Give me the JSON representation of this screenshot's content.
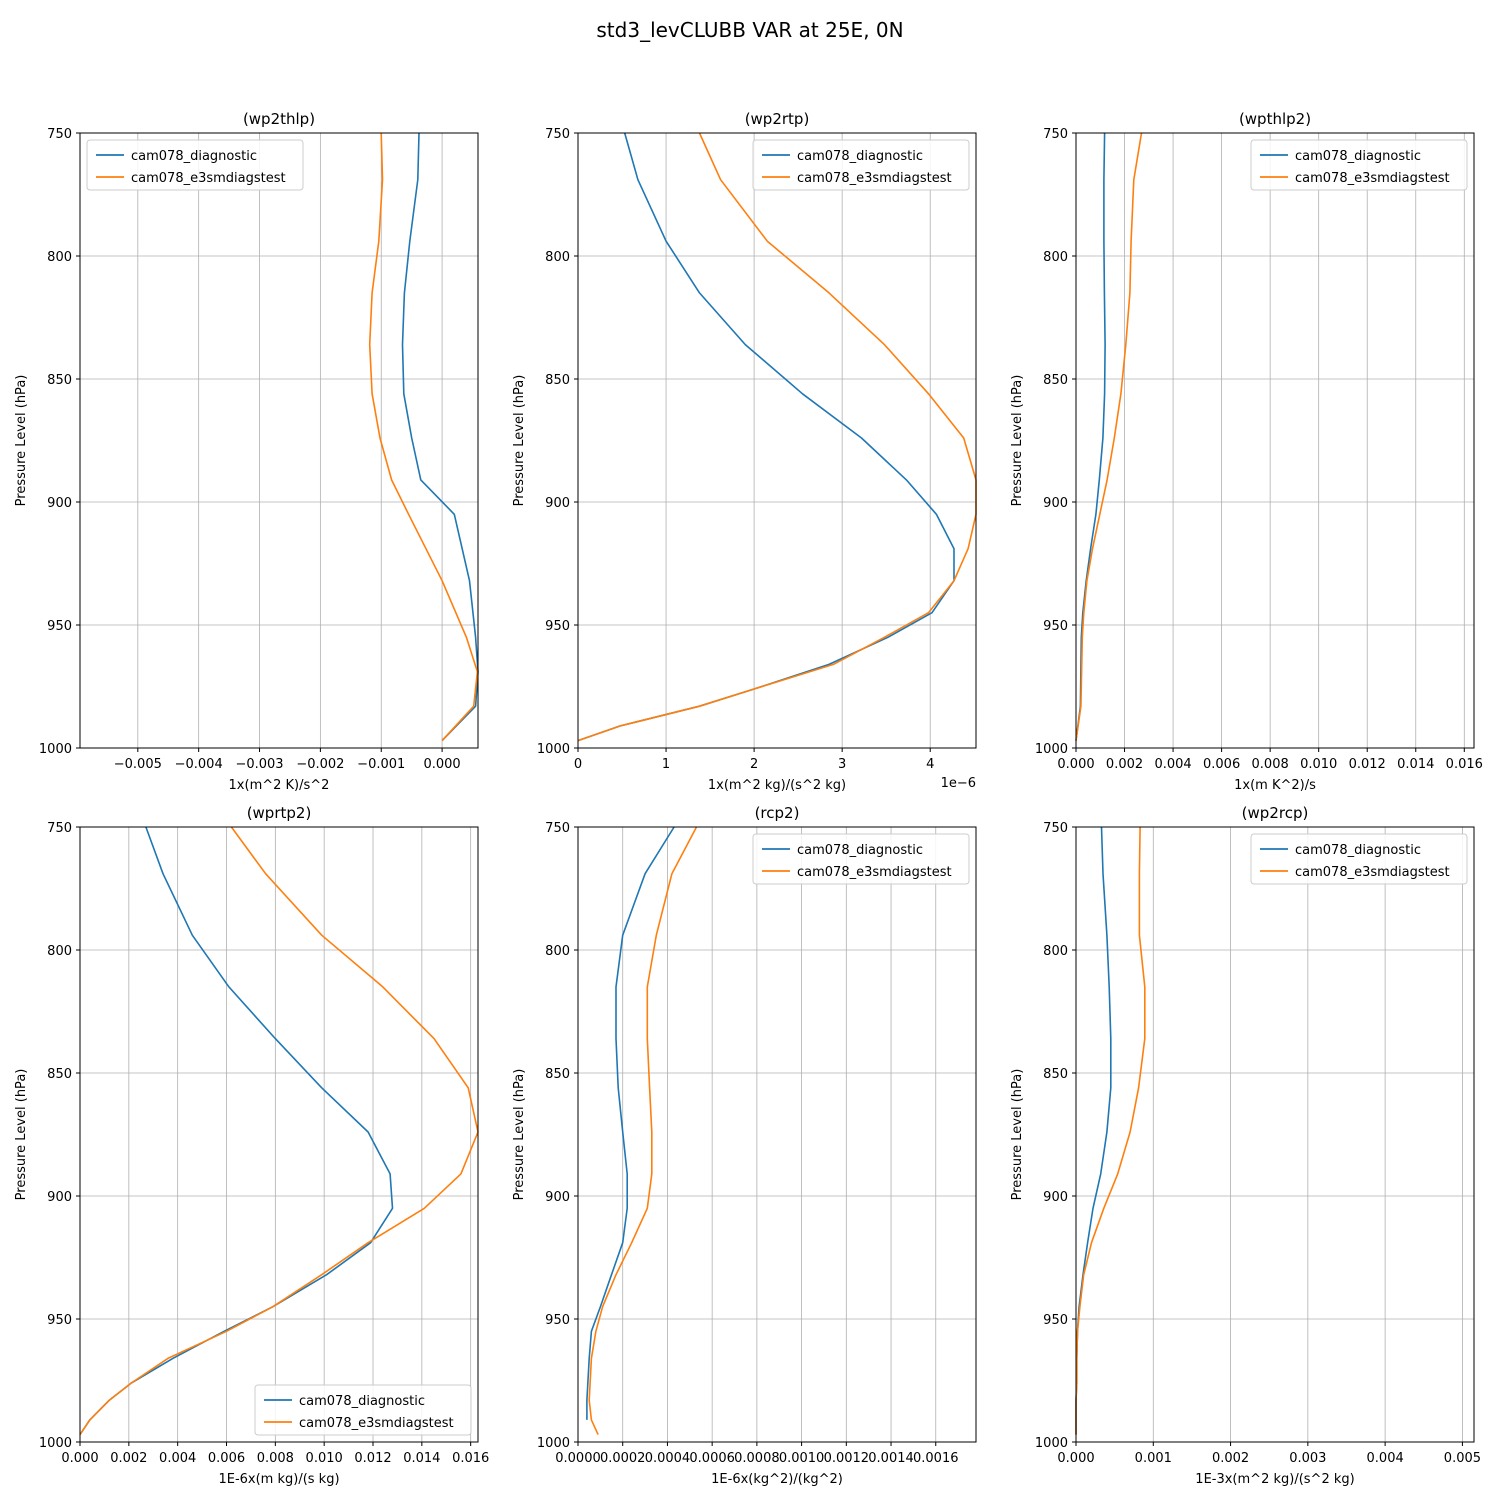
{
  "figure_title": "std3_levCLUBB VAR at 25E, 0N",
  "colors": {
    "diag": "#1f77b4",
    "e3sm": "#ff7f0e",
    "grid": "#b0b0b0"
  },
  "chart_data": [
    {
      "type": "line",
      "title": "(wp2thlp)",
      "xlabel": "1x(m^2 K)/s^2",
      "ylabel": "Pressure Level (hPa)",
      "xlim": [
        -0.00595,
        0.00059
      ],
      "ylim": [
        1000,
        750
      ],
      "y_inverted": true,
      "grid": true,
      "xticks": [
        -0.005,
        -0.004,
        -0.003,
        -0.002,
        -0.001,
        0.0
      ],
      "xtick_labels": [
        "−0.005",
        "−0.004",
        "−0.003",
        "−0.002",
        "−0.001",
        "0.000"
      ],
      "yticks": [
        750,
        800,
        850,
        900,
        950,
        1000
      ],
      "ytick_labels": [
        "750",
        "800",
        "850",
        "900",
        "950",
        "1000"
      ],
      "x_offset_text": "",
      "legend_loc": "upper-left",
      "series": [
        {
          "name": "cam078_diagnostic",
          "color": "#1f77b4",
          "x": [
            -0.00038,
            -0.0004,
            -0.00053,
            -0.00062,
            -0.00065,
            -0.00063,
            -0.0005,
            -0.00035,
            0.0002,
            0.00045,
            0.00055,
            0.00059,
            0.00055,
            0.0
          ],
          "y": [
            750,
            769,
            794,
            815,
            836,
            856,
            874,
            891,
            905,
            932,
            955,
            969,
            983,
            997
          ]
        },
        {
          "name": "cam078_e3smdiagstest",
          "color": "#ff7f0e",
          "x": [
            -0.001,
            -0.00098,
            -0.00104,
            -0.00115,
            -0.00119,
            -0.00115,
            -0.00102,
            -0.00083,
            -0.00055,
            0.0,
            0.0004,
            0.00058,
            0.00052,
            0.0
          ],
          "y": [
            750,
            769,
            794,
            815,
            836,
            856,
            874,
            891,
            905,
            932,
            955,
            969,
            983,
            997
          ]
        }
      ]
    },
    {
      "type": "line",
      "title": "(wp2rtp)",
      "xlabel": "1x(m^2 kg)/(s^2 kg)",
      "ylabel": "Pressure Level (hPa)",
      "xlim": [
        0,
        4.52
      ],
      "ylim": [
        1000,
        750
      ],
      "y_inverted": true,
      "grid": true,
      "xticks": [
        0,
        1,
        2,
        3,
        4
      ],
      "xtick_labels": [
        "0",
        "1",
        "2",
        "3",
        "4"
      ],
      "yticks": [
        750,
        800,
        850,
        900,
        950,
        1000
      ],
      "ytick_labels": [
        "750",
        "800",
        "850",
        "900",
        "950",
        "1000"
      ],
      "x_offset_text": "1e−6",
      "legend_loc": "upper-right",
      "series": [
        {
          "name": "cam078_diagnostic",
          "color": "#1f77b4",
          "x": [
            0.53,
            0.68,
            1.0,
            1.38,
            1.9,
            2.55,
            3.22,
            3.73,
            4.07,
            4.27,
            4.27,
            4.02,
            3.52,
            2.85,
            2.0,
            1.38,
            0.48,
            0.0
          ],
          "y": [
            750,
            769,
            794,
            815,
            836,
            856,
            874,
            891,
            905,
            919,
            932,
            945,
            955,
            966,
            976,
            983,
            991,
            997
          ]
        },
        {
          "name": "cam078_e3smdiagstest",
          "color": "#ff7f0e",
          "x": [
            1.38,
            1.62,
            2.15,
            2.85,
            3.48,
            3.98,
            4.38,
            4.52,
            4.52,
            4.43,
            4.27,
            3.98,
            3.48,
            2.9,
            2.0,
            1.38,
            0.48,
            0.0
          ],
          "y": [
            750,
            769,
            794,
            815,
            836,
            856,
            874,
            891,
            905,
            919,
            932,
            945,
            955,
            966,
            976,
            983,
            991,
            997
          ]
        }
      ]
    },
    {
      "type": "line",
      "title": "(wpthlp2)",
      "xlabel": "1x(m K^2)/s",
      "ylabel": "Pressure Level (hPa)",
      "xlim": [
        0,
        0.0164
      ],
      "ylim": [
        1000,
        750
      ],
      "y_inverted": true,
      "grid": true,
      "xticks": [
        0.0,
        0.002,
        0.004,
        0.006,
        0.008,
        0.01,
        0.012,
        0.014,
        0.016
      ],
      "xtick_labels": [
        "0.000",
        "0.002",
        "0.004",
        "0.006",
        "0.008",
        "0.010",
        "0.012",
        "0.014",
        "0.016"
      ],
      "yticks": [
        750,
        800,
        850,
        900,
        950,
        1000
      ],
      "ytick_labels": [
        "750",
        "800",
        "850",
        "900",
        "950",
        "1000"
      ],
      "x_offset_text": "",
      "legend_loc": "upper-right",
      "series": [
        {
          "name": "cam078_diagnostic",
          "color": "#1f77b4",
          "x": [
            0.00118,
            0.00115,
            0.00115,
            0.00117,
            0.0012,
            0.00118,
            0.00111,
            0.00096,
            0.00082,
            0.0006,
            0.00042,
            0.00028,
            0.00022,
            0.00018,
            0.0
          ],
          "y": [
            750,
            769,
            794,
            815,
            836,
            856,
            874,
            891,
            905,
            919,
            932,
            945,
            955,
            983,
            997
          ]
        },
        {
          "name": "cam078_e3smdiagstest",
          "color": "#ff7f0e",
          "x": [
            0.0027,
            0.00238,
            0.00227,
            0.00222,
            0.00205,
            0.00185,
            0.00158,
            0.00128,
            0.00098,
            0.00068,
            0.00045,
            0.00032,
            0.00026,
            0.0002,
            0.0
          ],
          "y": [
            750,
            769,
            794,
            815,
            836,
            856,
            874,
            891,
            905,
            919,
            932,
            945,
            955,
            983,
            997
          ]
        }
      ]
    },
    {
      "type": "line",
      "title": "(wprtp2)",
      "xlabel": "1E-6x(m kg)/(s kg)",
      "ylabel": "Pressure Level (hPa)",
      "xlim": [
        0,
        0.0163
      ],
      "ylim": [
        1000,
        750
      ],
      "y_inverted": true,
      "grid": true,
      "xticks": [
        0.0,
        0.002,
        0.004,
        0.006,
        0.008,
        0.01,
        0.012,
        0.014,
        0.016
      ],
      "xtick_labels": [
        "0.000",
        "0.002",
        "0.004",
        "0.006",
        "0.008",
        "0.010",
        "0.012",
        "0.014",
        "0.016"
      ],
      "yticks": [
        750,
        800,
        850,
        900,
        950,
        1000
      ],
      "ytick_labels": [
        "750",
        "800",
        "850",
        "900",
        "950",
        "1000"
      ],
      "x_offset_text": "",
      "legend_loc": "lower-right",
      "series": [
        {
          "name": "cam078_diagnostic",
          "color": "#1f77b4",
          "x": [
            0.0027,
            0.0034,
            0.0046,
            0.0061,
            0.008,
            0.0099,
            0.0118,
            0.0127,
            0.0128,
            0.0119,
            0.0101,
            0.0079,
            0.0059,
            0.0038,
            0.0021,
            0.0012,
            0.0004,
            0.0
          ],
          "y": [
            750,
            769,
            794,
            815,
            836,
            856,
            874,
            891,
            905,
            919,
            932,
            945,
            955,
            966,
            976,
            983,
            991,
            997
          ]
        },
        {
          "name": "cam078_e3smdiagstest",
          "color": "#ff7f0e",
          "x": [
            0.0062,
            0.0076,
            0.0099,
            0.0124,
            0.0145,
            0.0159,
            0.0163,
            0.0156,
            0.0141,
            0.0118,
            0.0099,
            0.0079,
            0.006,
            0.0036,
            0.0021,
            0.0012,
            0.0004,
            0.0
          ],
          "y": [
            750,
            769,
            794,
            815,
            836,
            856,
            874,
            891,
            905,
            919,
            932,
            945,
            955,
            966,
            976,
            983,
            991,
            997
          ]
        }
      ]
    },
    {
      "type": "line",
      "title": "(rcp2)",
      "xlabel": "1E-6x(kg^2)/(kg^2)",
      "ylabel": "Pressure Level (hPa)",
      "xlim": [
        0,
        0.00178
      ],
      "ylim": [
        1000,
        750
      ],
      "y_inverted": true,
      "grid": true,
      "xticks": [
        0.0,
        0.0002,
        0.0004,
        0.0006,
        0.0008,
        0.001,
        0.0012,
        0.0014,
        0.0016
      ],
      "xtick_labels": [
        "0.0000",
        "0.0002",
        "0.0004",
        "0.0006",
        "0.0008",
        "0.0010",
        "0.0012",
        "0.0014",
        "0.0016"
      ],
      "yticks": [
        750,
        800,
        850,
        900,
        950,
        1000
      ],
      "ytick_labels": [
        "750",
        "800",
        "850",
        "900",
        "950",
        "1000"
      ],
      "x_offset_text": "",
      "legend_loc": "upper-right",
      "series": [
        {
          "name": "cam078_diagnostic",
          "color": "#1f77b4",
          "x": [
            0.00043,
            0.0003,
            0.0002,
            0.00017,
            0.00017,
            0.00018,
            0.0002,
            0.00022,
            0.00022,
            0.0002,
            0.00015,
            0.0001,
            6e-05,
            5e-05,
            4e-05,
            4e-05
          ],
          "y": [
            750,
            769,
            794,
            815,
            836,
            856,
            874,
            891,
            905,
            919,
            932,
            945,
            955,
            966,
            983,
            991
          ]
        },
        {
          "name": "cam078_e3smdiagstest",
          "color": "#ff7f0e",
          "x": [
            0.00053,
            0.00042,
            0.00035,
            0.00031,
            0.00031,
            0.00032,
            0.00033,
            0.00033,
            0.00031,
            0.00024,
            0.00017,
            0.00011,
            8e-05,
            6e-05,
            5e-05,
            6e-05,
            9e-05
          ],
          "y": [
            750,
            769,
            794,
            815,
            836,
            856,
            874,
            891,
            905,
            919,
            932,
            945,
            955,
            966,
            983,
            991,
            997
          ]
        }
      ]
    },
    {
      "type": "line",
      "title": "(wp2rcp)",
      "xlabel": "1E-3x(m^2 kg)/(s^2 kg)",
      "ylabel": "Pressure Level (hPa)",
      "xlim": [
        0,
        0.00515
      ],
      "ylim": [
        1000,
        750
      ],
      "y_inverted": true,
      "grid": true,
      "xticks": [
        0.0,
        0.001,
        0.002,
        0.003,
        0.004,
        0.005
      ],
      "xtick_labels": [
        "0.000",
        "0.001",
        "0.002",
        "0.003",
        "0.004",
        "0.005"
      ],
      "yticks": [
        750,
        800,
        850,
        900,
        950,
        1000
      ],
      "ytick_labels": [
        "750",
        "800",
        "850",
        "900",
        "950",
        "1000"
      ],
      "x_offset_text": "",
      "legend_loc": "upper-right",
      "series": [
        {
          "name": "cam078_diagnostic",
          "color": "#1f77b4",
          "x": [
            0.00033,
            0.00035,
            0.0004,
            0.00043,
            0.00045,
            0.00045,
            0.0004,
            0.00032,
            0.00022,
            0.00015,
            9e-05,
            4e-05,
            2e-05,
            1e-05,
            1e-05,
            0.0,
            0.0,
            0.0
          ],
          "y": [
            750,
            769,
            794,
            815,
            836,
            856,
            874,
            891,
            905,
            919,
            932,
            945,
            955,
            966,
            976,
            983,
            991,
            997
          ]
        },
        {
          "name": "cam078_e3smdiagstest",
          "color": "#ff7f0e",
          "x": [
            0.00083,
            0.00082,
            0.00082,
            0.00089,
            0.00089,
            0.00081,
            0.0007,
            0.00054,
            0.00036,
            0.0002,
            0.0001,
            5e-05,
            2e-05,
            1e-05,
            1e-05,
            0.0,
            0.0,
            0.0
          ],
          "y": [
            750,
            769,
            794,
            815,
            836,
            856,
            874,
            891,
            905,
            919,
            932,
            945,
            955,
            966,
            976,
            983,
            991,
            997
          ]
        }
      ]
    }
  ]
}
